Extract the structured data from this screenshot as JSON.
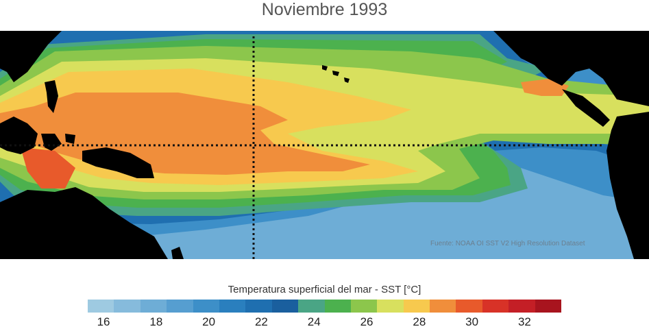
{
  "title": "Noviembre 1993",
  "credit": "Fuente: NOAA OI SST V2 High Resolution Dataset",
  "colorbar": {
    "label": "Temperatura superficial del mar - SST  [°C]",
    "colors": [
      "#9ecae1",
      "#86bbdc",
      "#6eadd6",
      "#569ed0",
      "#3d8fc8",
      "#2a7fbe",
      "#1f6fb0",
      "#1a5f9e",
      "#4aa585",
      "#4cb14e",
      "#8cc64c",
      "#d8e05e",
      "#f7c94e",
      "#f08e3b",
      "#e85a2b",
      "#d83227",
      "#c41f26",
      "#a8141e"
    ],
    "ticks": [
      16,
      18,
      20,
      22,
      24,
      26,
      28,
      30,
      32
    ]
  },
  "map": {
    "palette": {
      "land": "#000000",
      "sst_18": "#6eadd6",
      "sst_20": "#3d8fc8",
      "sst_22": "#1f6fb0",
      "sst_24": "#4aa585",
      "sst_25": "#4cb14e",
      "sst_26": "#8cc64c",
      "sst_27": "#d8e05e",
      "sst_28": "#f7c94e",
      "sst_29": "#f08e3b",
      "sst_30": "#e85a2b",
      "grid": "#111111"
    }
  }
}
